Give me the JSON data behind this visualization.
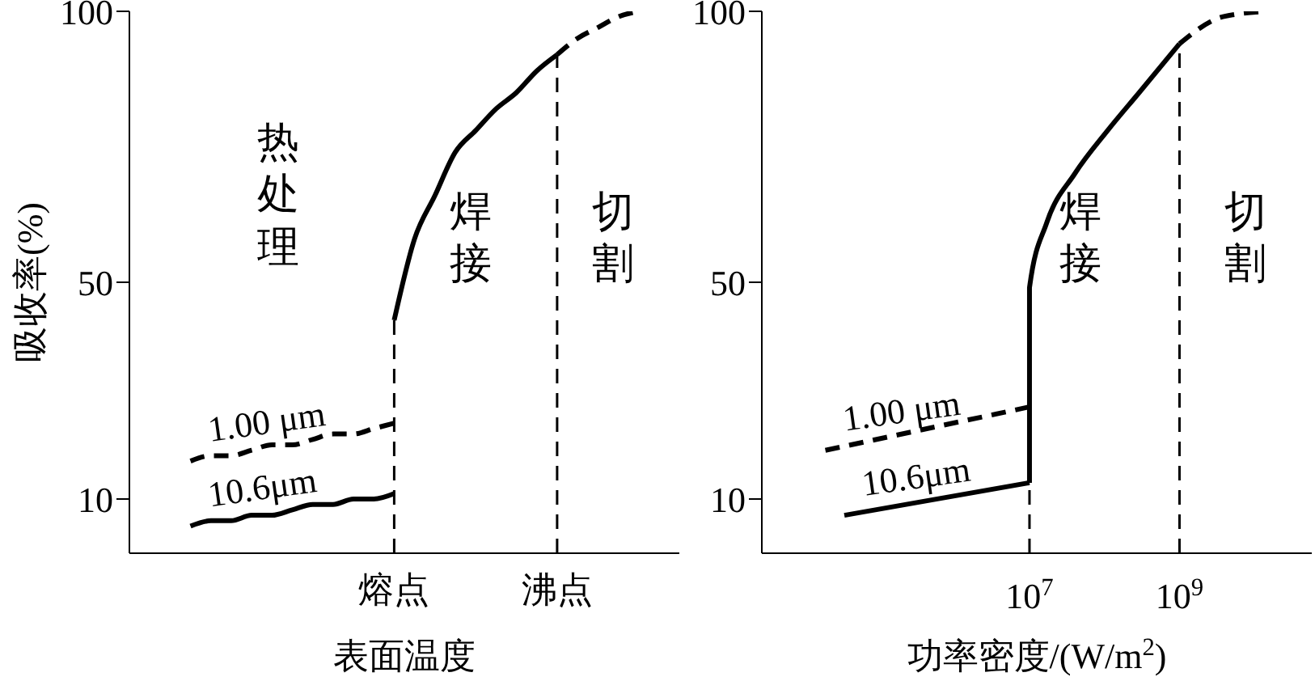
{
  "chart_data": [
    {
      "type": "line",
      "ylabel": "吸收率(%)",
      "xlabel": "表面温度",
      "categories": [
        null,
        null,
        null,
        null,
        null,
        null,
        null,
        null,
        null,
        null,
        null,
        null,
        null,
        "熔点",
        null,
        null,
        null,
        null,
        null,
        null,
        null,
        "沸点",
        null,
        null,
        null,
        null,
        null,
        null
      ],
      "ylim": [
        0,
        100
      ],
      "yticks": [
        10,
        50,
        100
      ],
      "marker": "none",
      "series": [
        {
          "name": "10.6μm",
          "color": "#000000",
          "line_style": "solid",
          "values": [
            null,
            null,
            null,
            5,
            6,
            6,
            7,
            7,
            8,
            9,
            9,
            10,
            10,
            11,
            null,
            null,
            null,
            null,
            null,
            null,
            null,
            null,
            null,
            null,
            null,
            null,
            null,
            null
          ]
        },
        {
          "name": "1.00 μm",
          "color": "#000000",
          "line_style": "dashed",
          "values": [
            null,
            null,
            null,
            17,
            18,
            18,
            19,
            20,
            20,
            21,
            22,
            22,
            23,
            24,
            null,
            null,
            null,
            null,
            null,
            null,
            null,
            null,
            null,
            null,
            null,
            null,
            null,
            null
          ]
        },
        {
          "color": "#000000",
          "line_style": "solid",
          "values": [
            null,
            null,
            null,
            null,
            null,
            null,
            null,
            null,
            null,
            null,
            null,
            null,
            null,
            43,
            58,
            66,
            74,
            78,
            82,
            85,
            89,
            92,
            null,
            null,
            null,
            null,
            null,
            null
          ]
        },
        {
          "color": "#000000",
          "line_style": "dashed",
          "values": [
            null,
            null,
            null,
            null,
            null,
            null,
            null,
            null,
            null,
            null,
            null,
            null,
            null,
            null,
            null,
            null,
            null,
            null,
            null,
            null,
            null,
            92,
            95,
            97,
            99,
            100,
            null,
            null
          ]
        }
      ],
      "ref_lines": [
        {
          "axis": "x",
          "value": "熔点",
          "line_style": "dashed",
          "color": "#000000"
        },
        {
          "axis": "x",
          "value": "沸点",
          "line_style": "dashed",
          "color": "#000000"
        }
      ],
      "annotations": [
        "热处理",
        "焊接",
        "切割"
      ]
    },
    {
      "type": "line",
      "xlabel": "功率密度/(W/m$^{2}$)",
      "log": "x",
      "xlim": [
        2700,
        58000000000
      ],
      "xticks": [
        {
          "value": 10000000,
          "label": "10$^{7}$"
        },
        {
          "value": 1000000000,
          "label": "10$^{9}$"
        }
      ],
      "ylim": [
        0,
        100
      ],
      "yticks": [
        10,
        50,
        100
      ],
      "marker": "none",
      "series": [
        {
          "name": "10.6μm",
          "color": "#000000",
          "line_style": "solid",
          "x": [
            34000,
            10000000
          ],
          "values": [
            7,
            13
          ]
        },
        {
          "name": "1.00 μm",
          "color": "#000000",
          "line_style": "dashed",
          "x": [
            19000,
            10000000
          ],
          "values": [
            19,
            27
          ]
        },
        {
          "color": "#000000",
          "line_style": "solid",
          "x": [
            10000000,
            10000000,
            17000000,
            40000000,
            110000000,
            290000000,
            1000000000
          ],
          "values": [
            13,
            49,
            61,
            70,
            78,
            85,
            94
          ]
        },
        {
          "color": "#000000",
          "line_style": "dashed",
          "x": [
            1000000000,
            3800000000,
            15000000000
          ],
          "values": [
            94,
            99,
            100
          ]
        }
      ],
      "ref_lines": [
        {
          "axis": "x",
          "value": 10000000,
          "line_style": "dashed",
          "color": "#000000"
        },
        {
          "axis": "x",
          "value": 1000000000,
          "line_style": "dashed",
          "color": "#000000"
        }
      ],
      "annotations": [
        "焊接",
        "切割"
      ]
    }
  ]
}
